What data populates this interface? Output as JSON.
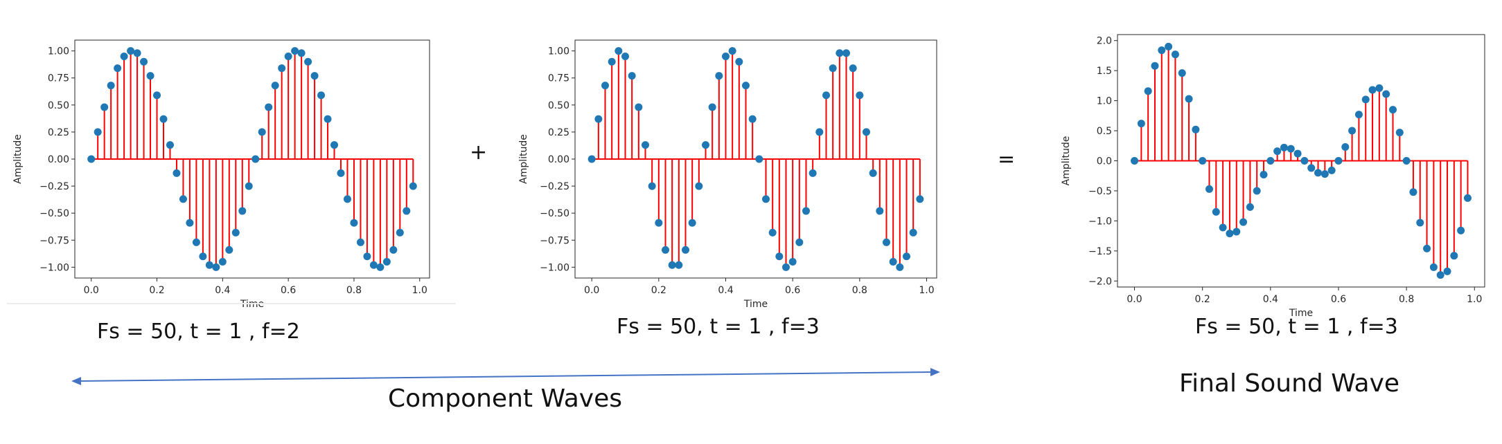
{
  "chart_data": [
    {
      "type": "stem",
      "xlabel": "Time",
      "ylabel": "Amplitude",
      "xlim": [
        -0.05,
        1.03
      ],
      "ylim": [
        -1.1,
        1.1
      ],
      "xticks": [
        0.0,
        0.2,
        0.4,
        0.6,
        0.8,
        1.0
      ],
      "xtick_labels": [
        "0.0",
        "0.2",
        "0.4",
        "0.6",
        "0.8",
        "1.0"
      ],
      "yticks": [
        1.0,
        0.75,
        0.5,
        0.25,
        0.0,
        -0.25,
        -0.5,
        -0.75,
        -1.0
      ],
      "ytick_labels": [
        "1.00",
        "0.75",
        "0.50",
        "0.25",
        "0.00",
        "−0.25",
        "−0.50",
        "−0.75",
        "−1.00"
      ],
      "x": [
        0.0,
        0.02,
        0.04,
        0.06,
        0.08,
        0.1,
        0.12,
        0.14,
        0.16,
        0.18,
        0.2,
        0.22,
        0.24,
        0.26,
        0.28,
        0.3,
        0.32,
        0.34,
        0.36,
        0.38,
        0.4,
        0.42,
        0.44,
        0.46,
        0.48,
        0.5,
        0.52,
        0.54,
        0.56,
        0.58,
        0.6,
        0.62,
        0.64,
        0.66,
        0.68,
        0.7,
        0.72,
        0.74,
        0.76,
        0.78,
        0.8,
        0.82,
        0.84,
        0.86,
        0.88,
        0.9,
        0.92,
        0.94,
        0.96,
        0.98
      ],
      "values": [
        0.0,
        0.25,
        0.48,
        0.68,
        0.84,
        0.95,
        1.0,
        0.98,
        0.9,
        0.77,
        0.59,
        0.37,
        0.13,
        -0.13,
        -0.37,
        -0.59,
        -0.77,
        -0.9,
        -0.98,
        -1.0,
        -0.95,
        -0.84,
        -0.68,
        -0.48,
        -0.25,
        0.0,
        0.25,
        0.48,
        0.68,
        0.84,
        0.95,
        1.0,
        0.98,
        0.9,
        0.77,
        0.59,
        0.37,
        0.13,
        -0.13,
        -0.37,
        -0.59,
        -0.77,
        -0.9,
        -0.98,
        -1.0,
        -0.95,
        -0.84,
        -0.68,
        -0.48,
        -0.25
      ],
      "stem_color": "#ff0000",
      "marker_color": "#1f77b4",
      "caption": "Fs = 50, t = 1 , f=2"
    },
    {
      "type": "stem",
      "xlabel": "Time",
      "ylabel": "Amplitude",
      "xlim": [
        -0.05,
        1.03
      ],
      "ylim": [
        -1.1,
        1.1
      ],
      "xticks": [
        0.0,
        0.2,
        0.4,
        0.6,
        0.8,
        1.0
      ],
      "xtick_labels": [
        "0.0",
        "0.2",
        "0.4",
        "0.6",
        "0.8",
        "1.0"
      ],
      "yticks": [
        1.0,
        0.75,
        0.5,
        0.25,
        0.0,
        -0.25,
        -0.5,
        -0.75,
        -1.0
      ],
      "ytick_labels": [
        "1.00",
        "0.75",
        "0.50",
        "0.25",
        "0.00",
        "−0.25",
        "−0.50",
        "−0.75",
        "−1.00"
      ],
      "x": [
        0.0,
        0.02,
        0.04,
        0.06,
        0.08,
        0.1,
        0.12,
        0.14,
        0.16,
        0.18,
        0.2,
        0.22,
        0.24,
        0.26,
        0.28,
        0.3,
        0.32,
        0.34,
        0.36,
        0.38,
        0.4,
        0.42,
        0.44,
        0.46,
        0.48,
        0.5,
        0.52,
        0.54,
        0.56,
        0.58,
        0.6,
        0.62,
        0.64,
        0.66,
        0.68,
        0.7,
        0.72,
        0.74,
        0.76,
        0.78,
        0.8,
        0.82,
        0.84,
        0.86,
        0.88,
        0.9,
        0.92,
        0.94,
        0.96,
        0.98
      ],
      "values": [
        0.0,
        0.37,
        0.68,
        0.9,
        1.0,
        0.95,
        0.77,
        0.48,
        0.13,
        -0.25,
        -0.59,
        -0.84,
        -0.98,
        -0.98,
        -0.84,
        -0.59,
        -0.25,
        0.13,
        0.48,
        0.77,
        0.95,
        1.0,
        0.9,
        0.68,
        0.37,
        0.0,
        -0.37,
        -0.68,
        -0.9,
        -1.0,
        -0.95,
        -0.77,
        -0.48,
        -0.13,
        0.25,
        0.59,
        0.84,
        0.98,
        0.98,
        0.84,
        0.59,
        0.25,
        -0.13,
        -0.48,
        -0.77,
        -0.95,
        -1.0,
        -0.9,
        -0.68,
        -0.37
      ],
      "stem_color": "#ff0000",
      "marker_color": "#1f77b4",
      "caption": "Fs = 50, t = 1 , f=3"
    },
    {
      "type": "stem",
      "xlabel": "Time",
      "ylabel": "Amplitude",
      "xlim": [
        -0.05,
        1.03
      ],
      "ylim": [
        -2.1,
        2.1
      ],
      "xticks": [
        0.0,
        0.2,
        0.4,
        0.6,
        0.8,
        1.0
      ],
      "xtick_labels": [
        "0.0",
        "0.2",
        "0.4",
        "0.6",
        "0.8",
        "1.0"
      ],
      "yticks": [
        2.0,
        1.5,
        1.0,
        0.5,
        0.0,
        -0.5,
        -1.0,
        -1.5,
        -2.0
      ],
      "ytick_labels": [
        "2.0",
        "1.5",
        "1.0",
        "0.5",
        "0.0",
        "−0.5",
        "−1.0",
        "−1.5",
        "−2.0"
      ],
      "x": [
        0.0,
        0.02,
        0.04,
        0.06,
        0.08,
        0.1,
        0.12,
        0.14,
        0.16,
        0.18,
        0.2,
        0.22,
        0.24,
        0.26,
        0.28,
        0.3,
        0.32,
        0.34,
        0.36,
        0.38,
        0.4,
        0.42,
        0.44,
        0.46,
        0.48,
        0.5,
        0.52,
        0.54,
        0.56,
        0.58,
        0.6,
        0.62,
        0.64,
        0.66,
        0.68,
        0.7,
        0.72,
        0.74,
        0.76,
        0.78,
        0.8,
        0.82,
        0.84,
        0.86,
        0.88,
        0.9,
        0.92,
        0.94,
        0.96,
        0.98
      ],
      "values": [
        0.0,
        0.62,
        1.16,
        1.58,
        1.84,
        1.9,
        1.77,
        1.46,
        1.03,
        0.52,
        0.0,
        -0.47,
        -0.85,
        -1.11,
        -1.21,
        -1.18,
        -1.02,
        -0.77,
        -0.5,
        -0.23,
        0.0,
        0.16,
        0.22,
        0.2,
        0.12,
        0.0,
        -0.12,
        -0.2,
        -0.22,
        -0.16,
        0.0,
        0.23,
        0.5,
        0.77,
        1.02,
        1.18,
        1.21,
        1.11,
        0.85,
        0.47,
        0.0,
        -0.52,
        -1.03,
        -1.46,
        -1.77,
        -1.9,
        -1.84,
        -1.58,
        -1.16,
        -0.62
      ],
      "stem_color": "#ff0000",
      "marker_color": "#1f77b4",
      "caption": "Fs = 50, t = 1 , f=3"
    }
  ],
  "operators": {
    "plus": "+",
    "equals": "="
  },
  "labels": {
    "component_waves": "Component Waves",
    "final_sound_wave": "Final Sound Wave"
  },
  "colors": {
    "arrow": "#4472c4",
    "stem": "#ff0000",
    "marker": "#1f77b4"
  }
}
